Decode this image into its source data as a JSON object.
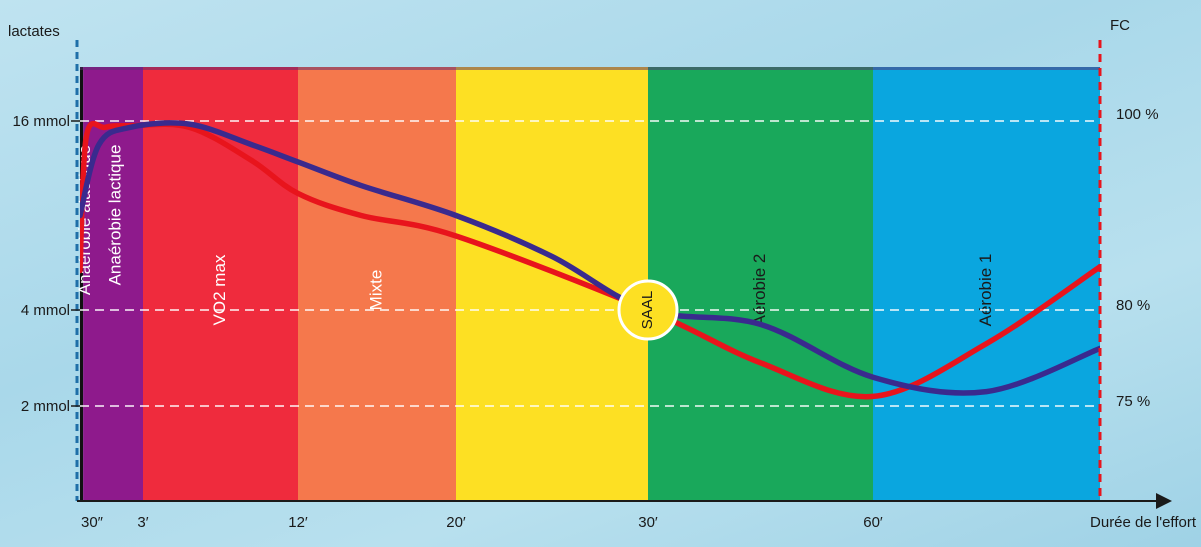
{
  "chart_data": {
    "type": "line",
    "ylabel_left": "lactates",
    "ylabel_right": "FC",
    "xlabel": "Durée de l'effort",
    "x_ticks": [
      {
        "label": "30″",
        "pos": 0
      },
      {
        "label": "3′",
        "pos": 1
      },
      {
        "label": "12′",
        "pos": 2
      },
      {
        "label": "20′",
        "pos": 3
      },
      {
        "label": "30′",
        "pos": 4
      },
      {
        "label": "60′",
        "pos": 5
      },
      {
        "label": "Durée de l'effort",
        "pos": 6
      }
    ],
    "y_ticks_left": [
      {
        "label": "16 mmol",
        "value": 16
      },
      {
        "label": "4 mmol",
        "value": 4
      },
      {
        "label": "2 mmol",
        "value": 2
      }
    ],
    "y_ticks_right": [
      {
        "label": "100 %",
        "value": 100
      },
      {
        "label": "80 %",
        "value": 80
      },
      {
        "label": "75 %",
        "value": 75
      }
    ],
    "zones": [
      {
        "label": "Anaérobie alactique",
        "start": 0,
        "end": 0.05,
        "color": "#111111",
        "text_color": "#ffffff"
      },
      {
        "label": "Anaérobie lactique",
        "start": 0.05,
        "end": 1,
        "color": "#8e1a8c",
        "text_color": "#ffffff"
      },
      {
        "label": "VO2 max",
        "start": 1,
        "end": 2,
        "color": "#ef2b3d",
        "text_color": "#ffffff"
      },
      {
        "label": "Mixte",
        "start": 2,
        "end": 3,
        "color": "#f5784c",
        "text_color": "#ffffff"
      },
      {
        "label": "",
        "start": 3,
        "end": 4,
        "color": "#fde023",
        "text_color": "#1a1a1a"
      },
      {
        "label": "Aérobie 2",
        "start": 4,
        "end": 5,
        "color": "#19a85b",
        "text_color": "#1a1a1a"
      },
      {
        "label": "Aérobie 1",
        "start": 5,
        "end": 6,
        "color": "#0aa6df",
        "text_color": "#1a1a1a"
      }
    ],
    "series": [
      {
        "color": "#e8141c",
        "points": [
          [
            0.0,
            6.5
          ],
          [
            0.1,
            15.0
          ],
          [
            0.4,
            15.6
          ],
          [
            0.8,
            15.7
          ],
          [
            1.3,
            15.6
          ],
          [
            1.7,
            13.5
          ],
          [
            2.0,
            11.4
          ],
          [
            2.4,
            10.0
          ],
          [
            3.0,
            8.7
          ],
          [
            4.0,
            4.0
          ],
          [
            4.5,
            2.9
          ],
          [
            5.0,
            1.8
          ],
          [
            5.5,
            0.7
          ],
          [
            6.0,
            -0.9
          ]
        ]
      },
      {
        "color": "#3a2a8e",
        "points": [
          [
            0.0,
            10.0
          ],
          [
            0.3,
            14.5
          ],
          [
            0.8,
            15.6
          ],
          [
            1.3,
            15.8
          ],
          [
            1.7,
            14.5
          ],
          [
            2.0,
            13.4
          ],
          [
            2.4,
            11.9
          ],
          [
            3.0,
            10.0
          ],
          [
            3.5,
            7.4
          ],
          [
            4.0,
            4.0
          ],
          [
            4.5,
            3.7
          ],
          [
            5.0,
            2.6
          ],
          [
            5.5,
            1.7
          ],
          [
            6.0,
            0.8
          ]
        ]
      }
    ],
    "annotation": {
      "label": "SAAL",
      "x": 4.0,
      "y": 4.0,
      "fill": "#fde023"
    },
    "grid": "dashed-horizontal-at-ticks",
    "colors": {
      "left_axis": "#1f6fa8",
      "right_axis": "#e8141c"
    }
  }
}
